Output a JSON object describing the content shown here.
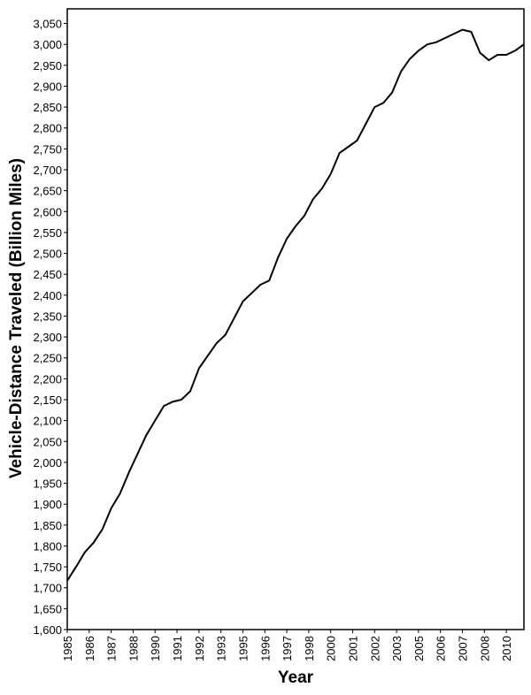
{
  "chart_data": {
    "type": "line",
    "y_label": "Vehicle-Distance Traveled (Billion Miles)",
    "x_label": "Year",
    "xlim": [
      1985,
      2011
    ],
    "ylim": [
      1600,
      3085
    ],
    "grid": false,
    "xticks": [
      {
        "value": 1985,
        "label": "1985"
      },
      {
        "value": 1986.25,
        "label": "1986"
      },
      {
        "value": 1987.5,
        "label": "1987"
      },
      {
        "value": 1988.75,
        "label": "1988"
      },
      {
        "value": 1990,
        "label": "1990"
      },
      {
        "value": 1991.25,
        "label": "1991"
      },
      {
        "value": 1992.5,
        "label": "1992"
      },
      {
        "value": 1993.75,
        "label": "1993"
      },
      {
        "value": 1995,
        "label": "1995"
      },
      {
        "value": 1996.25,
        "label": "1996"
      },
      {
        "value": 1997.5,
        "label": "1997"
      },
      {
        "value": 1998.75,
        "label": "1998"
      },
      {
        "value": 2000,
        "label": "2000"
      },
      {
        "value": 2001.25,
        "label": "2001"
      },
      {
        "value": 2002.5,
        "label": "2002"
      },
      {
        "value": 2003.75,
        "label": "2003"
      },
      {
        "value": 2005,
        "label": "2005"
      },
      {
        "value": 2006.25,
        "label": "2006"
      },
      {
        "value": 2007.5,
        "label": "2007"
      },
      {
        "value": 2008.75,
        "label": "2008"
      },
      {
        "value": 2010,
        "label": "2010"
      }
    ],
    "yticks": [
      {
        "value": 1600,
        "label": "1,600"
      },
      {
        "value": 1650,
        "label": "1,650"
      },
      {
        "value": 1700,
        "label": "1,700"
      },
      {
        "value": 1750,
        "label": "1,750"
      },
      {
        "value": 1800,
        "label": "1,800"
      },
      {
        "value": 1850,
        "label": "1,850"
      },
      {
        "value": 1900,
        "label": "1,900"
      },
      {
        "value": 1950,
        "label": "1,950"
      },
      {
        "value": 2000,
        "label": "2,000"
      },
      {
        "value": 2050,
        "label": "2,050"
      },
      {
        "value": 2100,
        "label": "2,100"
      },
      {
        "value": 2150,
        "label": "2,150"
      },
      {
        "value": 2200,
        "label": "2,200"
      },
      {
        "value": 2250,
        "label": "2,250"
      },
      {
        "value": 2300,
        "label": "2,300"
      },
      {
        "value": 2350,
        "label": "2,350"
      },
      {
        "value": 2400,
        "label": "2,400"
      },
      {
        "value": 2450,
        "label": "2,450"
      },
      {
        "value": 2500,
        "label": "2,500"
      },
      {
        "value": 2550,
        "label": "2,550"
      },
      {
        "value": 2600,
        "label": "2,600"
      },
      {
        "value": 2650,
        "label": "2,650"
      },
      {
        "value": 2700,
        "label": "2,700"
      },
      {
        "value": 2750,
        "label": "2,750"
      },
      {
        "value": 2800,
        "label": "2,800"
      },
      {
        "value": 2850,
        "label": "2,850"
      },
      {
        "value": 2900,
        "label": "2,900"
      },
      {
        "value": 2950,
        "label": "2,950"
      },
      {
        "value": 3000,
        "label": "3,000"
      },
      {
        "value": 3050,
        "label": "3,050"
      }
    ],
    "x": [
      1985,
      1985.5,
      1986,
      1986.5,
      1987,
      1987.5,
      1988,
      1988.5,
      1989,
      1989.5,
      1990,
      1990.5,
      1991,
      1991.5,
      1992,
      1992.5,
      1993,
      1993.5,
      1994,
      1994.5,
      1995,
      1995.5,
      1996,
      1996.5,
      1997,
      1997.5,
      1998,
      1998.5,
      1999,
      1999.5,
      2000,
      2000.5,
      2001,
      2001.5,
      2002,
      2002.5,
      2003,
      2003.5,
      2004,
      2004.5,
      2005,
      2005.5,
      2006,
      2006.5,
      2007,
      2007.5,
      2008,
      2008.5,
      2009,
      2009.5,
      2010,
      2010.5,
      2011
    ],
    "series": [
      {
        "color": "#000000",
        "values": [
          1717,
          1750,
          1785,
          1808,
          1840,
          1890,
          1925,
          1975,
          2020,
          2065,
          2100,
          2135,
          2145,
          2150,
          2170,
          2225,
          2255,
          2285,
          2305,
          2345,
          2385,
          2405,
          2425,
          2435,
          2490,
          2535,
          2565,
          2590,
          2630,
          2655,
          2690,
          2740,
          2755,
          2770,
          2810,
          2850,
          2860,
          2885,
          2935,
          2965,
          2985,
          3000,
          3005,
          3015,
          3025,
          3035,
          3030,
          2980,
          2962,
          2975,
          2975,
          2985,
          3000
        ]
      }
    ]
  }
}
